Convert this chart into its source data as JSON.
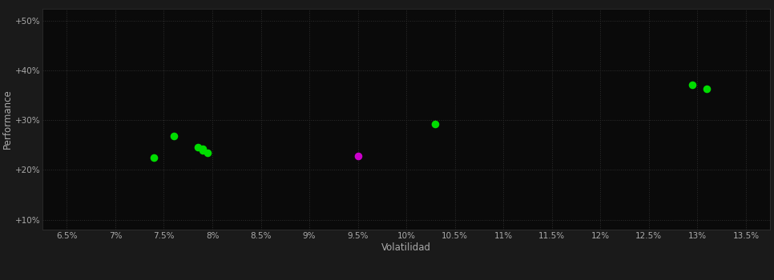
{
  "background_color": "#1a1a1a",
  "plot_bg_color": "#0a0a0a",
  "grid_color": "#2e2e2e",
  "xlabel": "Volatilidad",
  "ylabel": "Performance",
  "xlim": [
    0.0625,
    0.1375
  ],
  "ylim": [
    0.08,
    0.525
  ],
  "xticks": [
    0.065,
    0.07,
    0.075,
    0.08,
    0.085,
    0.09,
    0.095,
    0.1,
    0.105,
    0.11,
    0.115,
    0.12,
    0.125,
    0.13,
    0.135
  ],
  "xtick_labels": [
    "6.5%",
    "7%",
    "7.5%",
    "8%",
    "8.5%",
    "9%",
    "9.5%",
    "10%",
    "10.5%",
    "11%",
    "11.5%",
    "12%",
    "12.5%",
    "13%",
    "13.5%"
  ],
  "yticks": [
    0.1,
    0.2,
    0.3,
    0.4,
    0.5
  ],
  "ytick_labels": [
    "+10%",
    "+20%",
    "+30%",
    "+40%",
    "+50%"
  ],
  "green_points": [
    [
      0.076,
      0.268
    ],
    [
      0.0785,
      0.246
    ],
    [
      0.079,
      0.243
    ],
    [
      0.079,
      0.239
    ],
    [
      0.0795,
      0.235
    ],
    [
      0.074,
      0.225
    ],
    [
      0.103,
      0.292
    ],
    [
      0.1295,
      0.372
    ],
    [
      0.131,
      0.364
    ]
  ],
  "magenta_points": [
    [
      0.095,
      0.228
    ]
  ],
  "point_size": 35,
  "green_color": "#00dd00",
  "magenta_color": "#cc00cc",
  "tick_color": "#aaaaaa",
  "tick_fontsize": 7.5,
  "label_fontsize": 8.5
}
